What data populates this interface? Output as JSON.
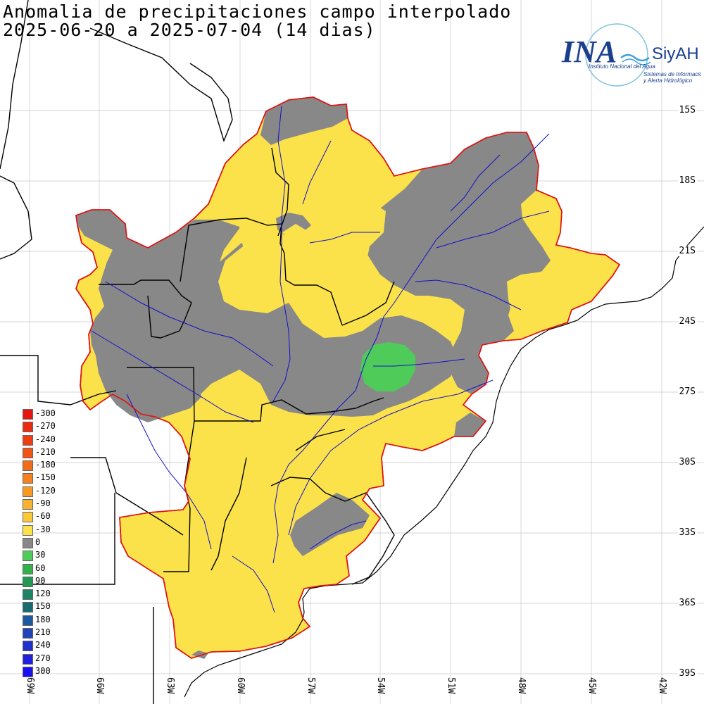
{
  "title": {
    "line1": "Anomalia de precipitaciones campo interpolado",
    "line2": "2025-06-20 a 2025-07-04 (14 dias)"
  },
  "logo": {
    "name": "INA",
    "system": "SiyAH",
    "org": "Instituto Nacional del Agua",
    "subtitle1": "Sistemas de Información",
    "subtitle2": "y Alerta Hidrológico"
  },
  "lat_labels": [
    "15S",
    "18S",
    "21S",
    "24S",
    "27S",
    "30S",
    "33S",
    "36S",
    "39S"
  ],
  "lon_labels": [
    "69W",
    "66W",
    "63W",
    "60W",
    "57W",
    "54W",
    "51W",
    "48W",
    "45W",
    "42W"
  ],
  "legend": {
    "items": [
      {
        "label": "-300",
        "color": "#e8140f"
      },
      {
        "label": "-270",
        "color": "#ec2a10"
      },
      {
        "label": "-240",
        "color": "#ef3d12"
      },
      {
        "label": "-210",
        "color": "#f15415"
      },
      {
        "label": "-180",
        "color": "#f36a18"
      },
      {
        "label": "-150",
        "color": "#f5811d"
      },
      {
        "label": "-120",
        "color": "#f79a24"
      },
      {
        "label": "-90",
        "color": "#f9b22d"
      },
      {
        "label": "-60",
        "color": "#fbc838"
      },
      {
        "label": "-30",
        "color": "#fbe24b"
      },
      {
        "label": "0",
        "color": "#888888"
      },
      {
        "label": "30",
        "color": "#4fcb5a"
      },
      {
        "label": "60",
        "color": "#33b048"
      },
      {
        "label": "90",
        "color": "#229a55"
      },
      {
        "label": "120",
        "color": "#1a8464"
      },
      {
        "label": "150",
        "color": "#176c70"
      },
      {
        "label": "180",
        "color": "#1b5aa0"
      },
      {
        "label": "210",
        "color": "#1e44b8"
      },
      {
        "label": "240",
        "color": "#1f30cc"
      },
      {
        "label": "270",
        "color": "#2020dd"
      },
      {
        "label": "300",
        "color": "#1a10ee"
      }
    ]
  },
  "colors": {
    "anomaly_dry": "#fbe24b",
    "anomaly_neutral": "#888888",
    "anomaly_wet": "#4fcb5a",
    "basin_outline": "#e01010",
    "rivers": "#1010cc",
    "borders": "#000000",
    "grid": "#c8c8c8"
  }
}
